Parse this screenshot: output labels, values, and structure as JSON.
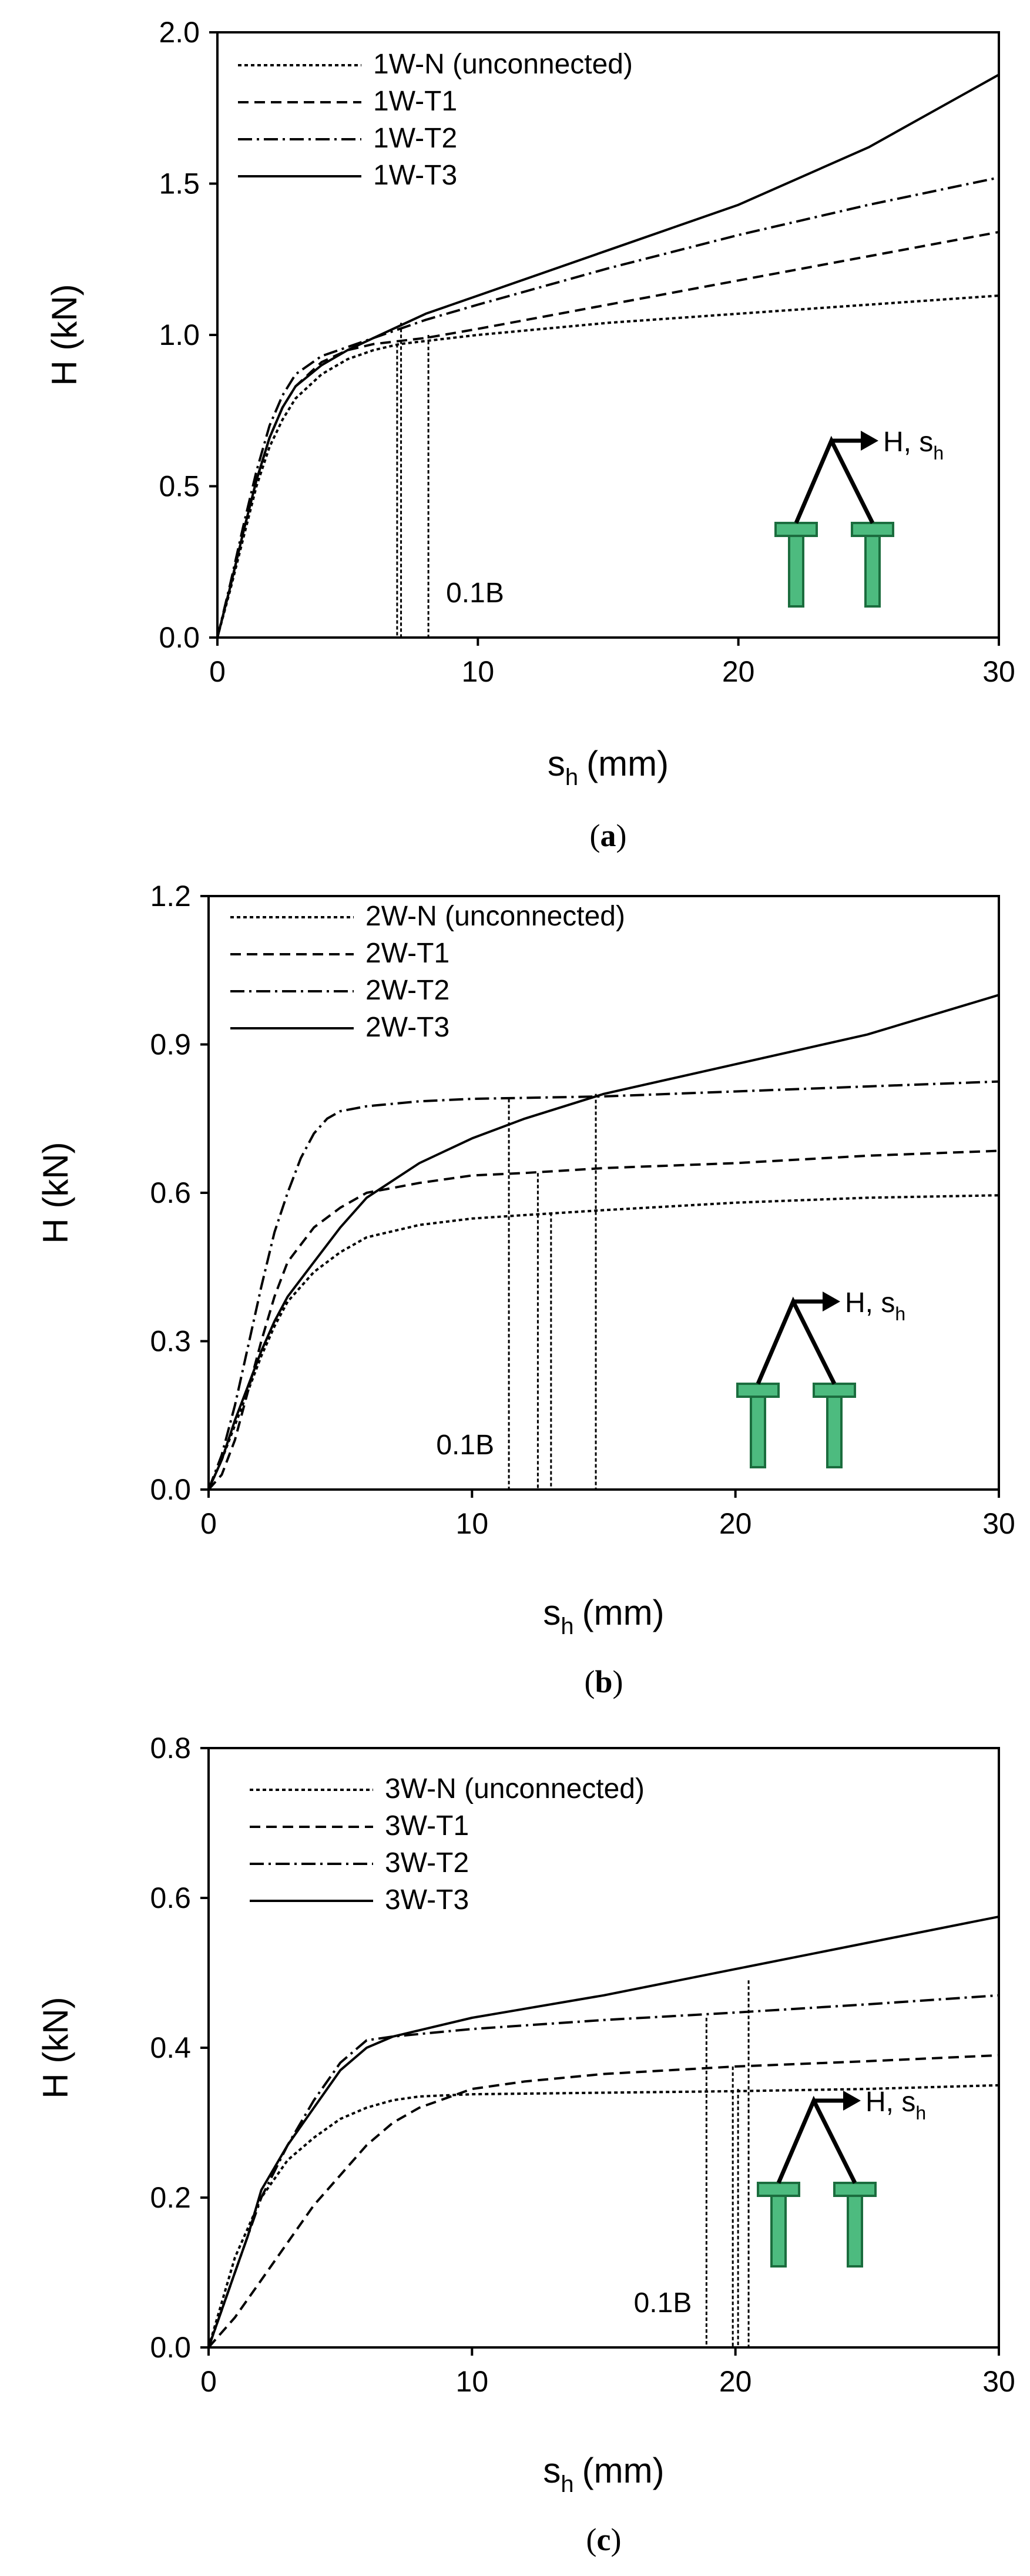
{
  "figure": {
    "inset_label": "H, s",
    "inset_subscript": "h",
    "colors": {
      "footing": "#4dbb7f",
      "footing_stroke": "#1b6d3e",
      "axes": "#000000"
    }
  },
  "chart_data": [
    {
      "type": "line",
      "panel": "a",
      "caption": "(a)",
      "caption_letter": "a",
      "xlabel_base": "s",
      "xlabel_sub": "h",
      "xlabel_unit": "(mm)",
      "ylabel": "H (kN)",
      "xlim": [
        0,
        30
      ],
      "ylim": [
        0,
        2.0
      ],
      "xticks": [
        0,
        10,
        20,
        30
      ],
      "xtick_labels": [
        "0",
        "10",
        "20",
        "30"
      ],
      "yticks": [
        0,
        0.5,
        1.0,
        1.5,
        2.0
      ],
      "ytick_labels": [
        "0.0",
        "0.5",
        "1.0",
        "1.5",
        "2.0"
      ],
      "grid": false,
      "annotation": "0.1B",
      "series": [
        {
          "name": "1W-N (unconnected)",
          "style": "dotted",
          "x": [
            0,
            0.5,
            1,
            1.5,
            2,
            2.5,
            3,
            4,
            5,
            6,
            7,
            8,
            10,
            15,
            20,
            25,
            30
          ],
          "y": [
            0,
            0.16,
            0.33,
            0.5,
            0.63,
            0.72,
            0.79,
            0.87,
            0.92,
            0.95,
            0.97,
            0.98,
            1.0,
            1.04,
            1.07,
            1.1,
            1.13
          ]
        },
        {
          "name": "1W-T1",
          "style": "dashed",
          "x": [
            0,
            0.5,
            1,
            1.5,
            2,
            2.5,
            3,
            4,
            5,
            6,
            7,
            8,
            10,
            15,
            20,
            25,
            30
          ],
          "y": [
            0,
            0.17,
            0.35,
            0.52,
            0.66,
            0.76,
            0.83,
            0.91,
            0.95,
            0.97,
            0.98,
            0.99,
            1.02,
            1.1,
            1.18,
            1.26,
            1.34
          ]
        },
        {
          "name": "1W-T2",
          "style": "dashdot",
          "x": [
            0,
            0.5,
            1,
            1.5,
            2,
            2.5,
            3,
            4,
            5,
            6,
            7,
            8,
            10,
            15,
            20,
            25,
            30
          ],
          "y": [
            0,
            0.18,
            0.37,
            0.55,
            0.7,
            0.8,
            0.87,
            0.93,
            0.96,
            0.99,
            1.02,
            1.05,
            1.1,
            1.22,
            1.33,
            1.43,
            1.52
          ]
        },
        {
          "name": "1W-T3",
          "style": "solid",
          "x": [
            0,
            0.5,
            1,
            1.5,
            2,
            2.5,
            3,
            4,
            5,
            6,
            7,
            8,
            10,
            15,
            20,
            25,
            30
          ],
          "y": [
            0,
            0.17,
            0.35,
            0.52,
            0.66,
            0.76,
            0.83,
            0.9,
            0.95,
            0.99,
            1.03,
            1.07,
            1.13,
            1.28,
            1.43,
            1.62,
            1.86
          ]
        }
      ],
      "markers_0_1B": [
        {
          "x": 6.9,
          "y_top": 0.97
        },
        {
          "x": 7.05,
          "y_top": 1.04
        },
        {
          "x": 8.1,
          "y_top": 1.0
        }
      ]
    },
    {
      "type": "line",
      "panel": "b",
      "caption": "(b)",
      "caption_letter": "b",
      "xlabel_base": "s",
      "xlabel_sub": "h",
      "xlabel_unit": "(mm)",
      "ylabel": "H (kN)",
      "xlim": [
        0,
        30
      ],
      "ylim": [
        0,
        1.2
      ],
      "xticks": [
        0,
        10,
        20,
        30
      ],
      "xtick_labels": [
        "0",
        "10",
        "20",
        "30"
      ],
      "yticks": [
        0,
        0.3,
        0.6,
        0.9,
        1.2
      ],
      "ytick_labels": [
        "0.0",
        "0.3",
        "0.6",
        "0.9",
        "1.2"
      ],
      "grid": false,
      "annotation": "0.1B",
      "series": [
        {
          "name": "2W-N (unconnected)",
          "style": "dotted",
          "x": [
            0,
            0.5,
            1,
            1.5,
            2,
            2.5,
            3,
            4,
            5,
            6,
            8,
            10,
            12,
            15,
            20,
            25,
            30
          ],
          "y": [
            0,
            0.06,
            0.13,
            0.2,
            0.27,
            0.33,
            0.38,
            0.44,
            0.48,
            0.51,
            0.535,
            0.548,
            0.555,
            0.565,
            0.58,
            0.59,
            0.595
          ]
        },
        {
          "name": "2W-T1",
          "style": "dashed",
          "x": [
            0,
            0.5,
            1,
            1.5,
            2,
            2.5,
            3,
            4,
            5,
            6,
            8,
            10,
            12,
            15,
            20,
            25,
            30
          ],
          "y": [
            0,
            0.03,
            0.1,
            0.2,
            0.3,
            0.39,
            0.46,
            0.53,
            0.57,
            0.6,
            0.62,
            0.635,
            0.64,
            0.65,
            0.66,
            0.675,
            0.685
          ]
        },
        {
          "name": "2W-T2",
          "style": "dashdot",
          "x": [
            0,
            0.5,
            1,
            1.5,
            2,
            2.5,
            3,
            3.5,
            4,
            4.5,
            5,
            6,
            8,
            10,
            15,
            20,
            25,
            30
          ],
          "y": [
            0,
            0.07,
            0.17,
            0.29,
            0.41,
            0.52,
            0.6,
            0.67,
            0.72,
            0.75,
            0.765,
            0.775,
            0.785,
            0.79,
            0.795,
            0.805,
            0.815,
            0.825
          ]
        },
        {
          "name": "2W-T3",
          "style": "solid",
          "x": [
            0,
            0.5,
            1,
            1.5,
            2,
            2.5,
            3,
            4,
            5,
            6,
            8,
            10,
            12,
            15,
            20,
            25,
            30
          ],
          "y": [
            0,
            0.06,
            0.14,
            0.21,
            0.28,
            0.34,
            0.39,
            0.46,
            0.53,
            0.59,
            0.66,
            0.71,
            0.75,
            0.8,
            0.86,
            0.92,
            1.0
          ]
        }
      ],
      "markers_0_1B": [
        {
          "x": 11.4,
          "y_top": 0.79
        },
        {
          "x": 12.5,
          "y_top": 0.64
        },
        {
          "x": 13.0,
          "y_top": 0.56
        },
        {
          "x": 14.7,
          "y_top": 0.8
        }
      ]
    },
    {
      "type": "line",
      "panel": "c",
      "caption": "(c)",
      "caption_letter": "c",
      "xlabel_base": "s",
      "xlabel_sub": "h",
      "xlabel_unit": "(mm)",
      "ylabel": "H (kN)",
      "xlim": [
        0,
        30
      ],
      "ylim": [
        0,
        0.8
      ],
      "xticks": [
        0,
        10,
        20,
        30
      ],
      "xtick_labels": [
        "0",
        "10",
        "20",
        "30"
      ],
      "yticks": [
        0,
        0.2,
        0.4,
        0.6,
        0.8
      ],
      "ytick_labels": [
        "0.0",
        "0.2",
        "0.4",
        "0.6",
        "0.8"
      ],
      "grid": false,
      "annotation": "0.1B",
      "series": [
        {
          "name": "3W-N (unconnected)",
          "style": "dotted",
          "x": [
            0,
            0.5,
            1,
            1.5,
            2,
            3,
            4,
            5,
            6,
            7,
            8,
            10,
            15,
            20,
            25,
            30
          ],
          "y": [
            0,
            0.06,
            0.12,
            0.16,
            0.2,
            0.25,
            0.28,
            0.305,
            0.32,
            0.33,
            0.335,
            0.338,
            0.34,
            0.342,
            0.345,
            0.35
          ]
        },
        {
          "name": "3W-T1",
          "style": "dashed",
          "x": [
            0,
            1,
            2,
            3,
            4,
            5,
            6,
            7,
            8,
            10,
            12,
            15,
            20,
            25,
            30
          ],
          "y": [
            0,
            0.04,
            0.09,
            0.14,
            0.19,
            0.23,
            0.27,
            0.3,
            0.32,
            0.345,
            0.355,
            0.365,
            0.375,
            0.382,
            0.39
          ]
        },
        {
          "name": "3W-T2",
          "style": "dashdot",
          "x": [
            0,
            0.5,
            1,
            1.5,
            2,
            3,
            4,
            5,
            6,
            7,
            10,
            15,
            20,
            25,
            30
          ],
          "y": [
            0,
            0.05,
            0.1,
            0.15,
            0.2,
            0.27,
            0.33,
            0.38,
            0.41,
            0.415,
            0.425,
            0.437,
            0.447,
            0.458,
            0.47
          ]
        },
        {
          "name": "3W-T3",
          "style": "solid",
          "x": [
            0,
            0.5,
            1,
            1.5,
            2,
            3,
            4,
            5,
            6,
            7,
            10,
            15,
            20,
            25,
            30
          ],
          "y": [
            0,
            0.05,
            0.1,
            0.15,
            0.21,
            0.27,
            0.32,
            0.37,
            0.4,
            0.415,
            0.44,
            0.47,
            0.505,
            0.54,
            0.575
          ]
        }
      ],
      "markers_0_1B": [
        {
          "x": 18.9,
          "y_top": 0.44
        },
        {
          "x": 19.9,
          "y_top": 0.375
        },
        {
          "x": 20.1,
          "y_top": 0.345
        },
        {
          "x": 20.5,
          "y_top": 0.49
        }
      ]
    }
  ]
}
